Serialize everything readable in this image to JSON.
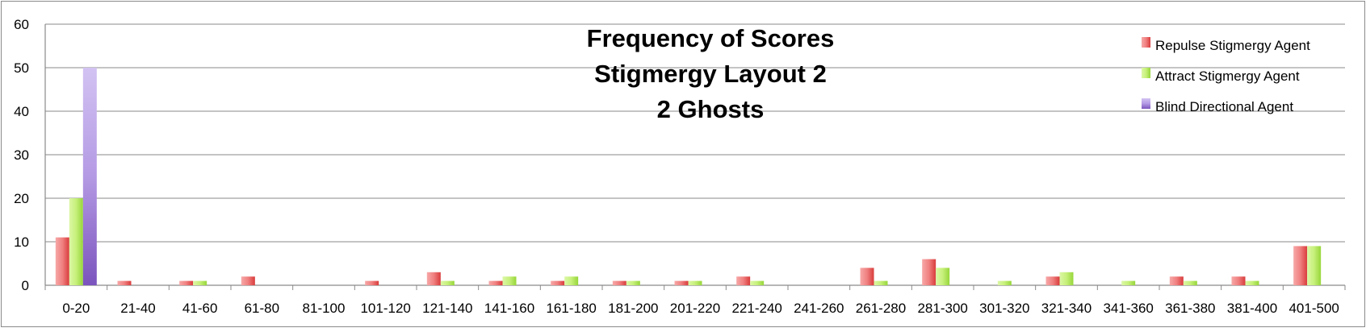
{
  "chart_data": {
    "type": "bar",
    "title_lines": [
      "Frequency of Scores",
      "Stigmergy Layout 2",
      "2 Ghosts"
    ],
    "xlabel": "",
    "ylabel": "",
    "ylim": [
      0,
      60
    ],
    "yticks": [
      0,
      10,
      20,
      30,
      40,
      50,
      60
    ],
    "grid": true,
    "legend_position": "top-right",
    "categories": [
      "0-20",
      "21-40",
      "41-60",
      "61-80",
      "81-100",
      "101-120",
      "121-140",
      "141-160",
      "161-180",
      "181-200",
      "201-220",
      "221-240",
      "241-260",
      "261-280",
      "281-300",
      "301-320",
      "321-340",
      "341-360",
      "361-380",
      "381-400",
      "401-500"
    ],
    "series": [
      {
        "name": "Repulse Stigmergy Agent",
        "color": "#e34a4a",
        "values": [
          11,
          1,
          1,
          2,
          0,
          1,
          3,
          1,
          1,
          1,
          1,
          2,
          0,
          4,
          6,
          0,
          2,
          0,
          2,
          2,
          9
        ]
      },
      {
        "name": "Attract Stigmergy Agent",
        "color": "#9be03c",
        "values": [
          20,
          0,
          1,
          0,
          0,
          0,
          1,
          2,
          2,
          1,
          1,
          1,
          0,
          1,
          4,
          1,
          3,
          1,
          1,
          1,
          9
        ]
      },
      {
        "name": "Blind Directional Agent",
        "color": "#8a62c6",
        "values": [
          50,
          0,
          0,
          0,
          0,
          0,
          0,
          0,
          0,
          0,
          0,
          0,
          0,
          0,
          0,
          0,
          0,
          0,
          0,
          0,
          0
        ]
      }
    ]
  }
}
